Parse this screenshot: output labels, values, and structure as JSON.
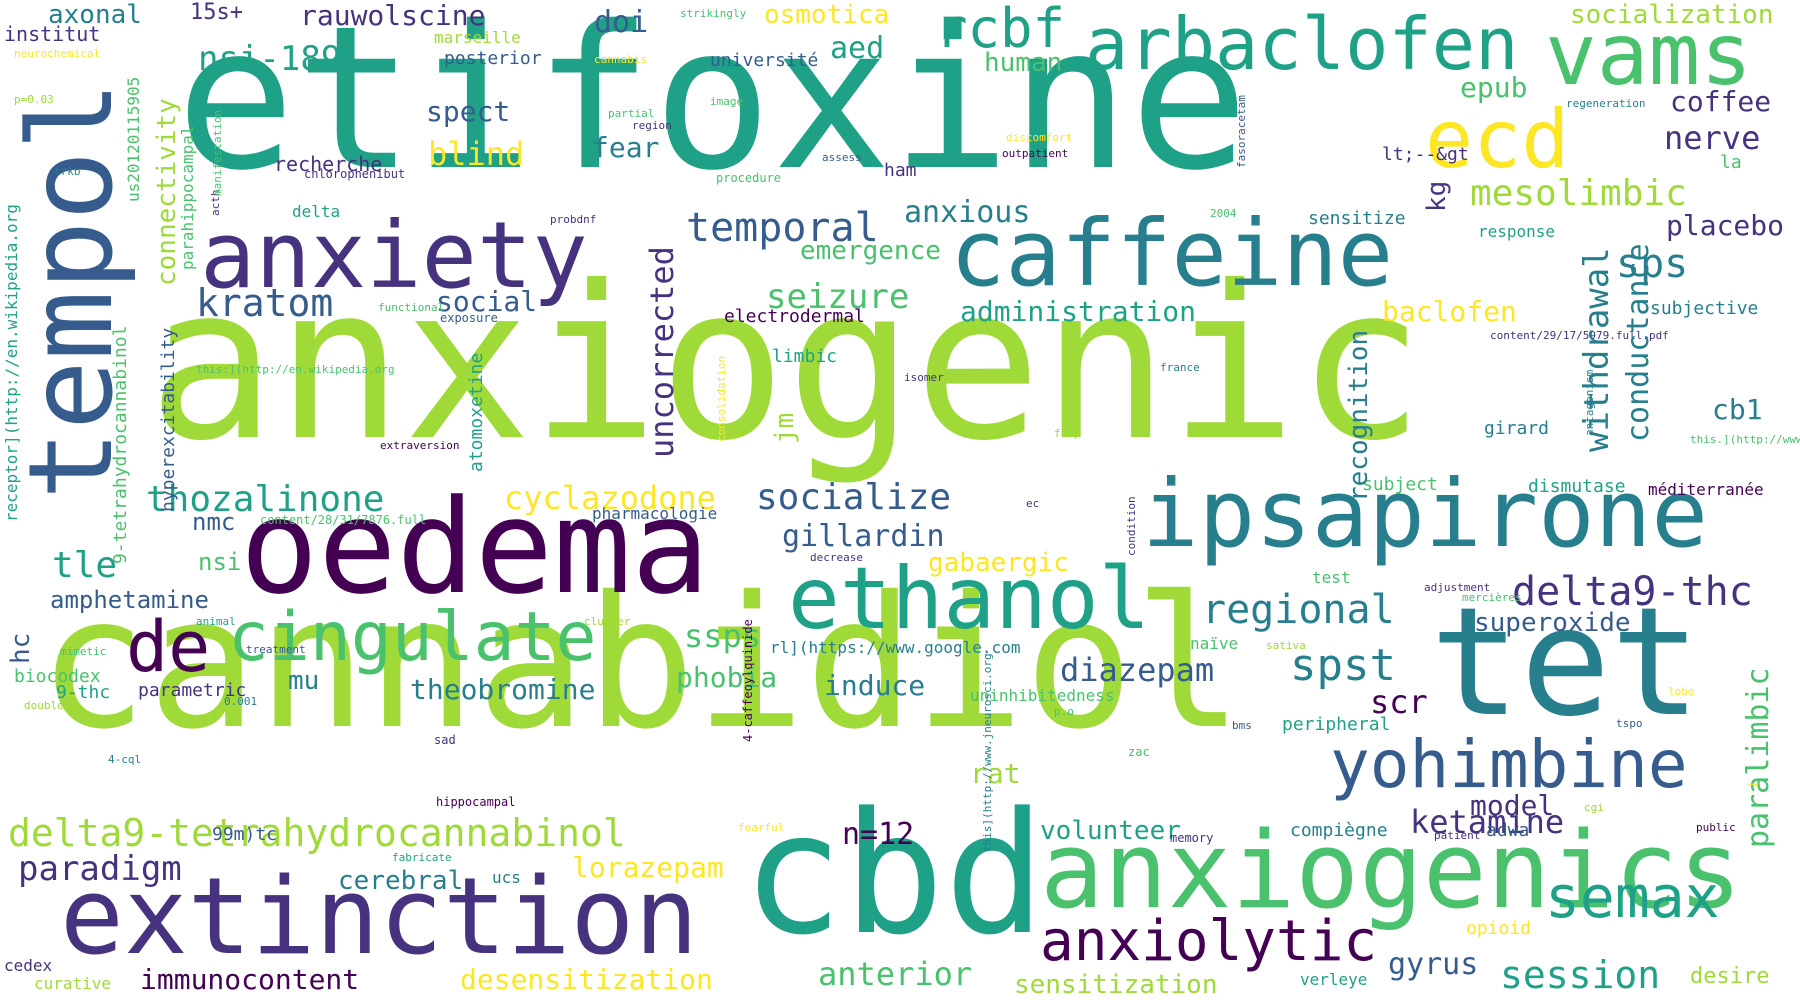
{
  "palette": [
    "#440154",
    "#46327e",
    "#365c8d",
    "#277f8e",
    "#1fa187",
    "#4ac16d",
    "#a0da39",
    "#fde725"
  ],
  "words": [
    {
      "text": "anxiogenic",
      "color": "#a0da39"
    },
    {
      "text": "etifoxine",
      "color": "#1fa187"
    },
    {
      "text": "cannabidiol",
      "color": "#a0da39"
    },
    {
      "text": "cbd",
      "color": "#1fa187"
    },
    {
      "text": "tempol",
      "color": "#365c8d"
    },
    {
      "text": "oedema",
      "color": "#440154"
    },
    {
      "text": "tet",
      "color": "#277f8e"
    },
    {
      "text": "anxiogenics",
      "color": "#4ac16d"
    },
    {
      "text": "extinction",
      "color": "#46327e"
    },
    {
      "text": "ipsapirone",
      "color": "#277f8e"
    },
    {
      "text": "caffeine",
      "color": "#277f8e"
    },
    {
      "text": "anxiety",
      "color": "#46327e"
    },
    {
      "text": "arbaclofen",
      "color": "#1fa187"
    },
    {
      "text": "vams",
      "color": "#4ac16d"
    },
    {
      "text": "ethanol",
      "color": "#1fa187"
    },
    {
      "text": "ecd",
      "color": "#fde725"
    },
    {
      "text": "yohimbine",
      "color": "#365c8d"
    },
    {
      "text": "cingulate",
      "color": "#4ac16d"
    },
    {
      "text": "semax",
      "color": "#1fa187"
    },
    {
      "text": "anxiolytic",
      "color": "#440154"
    },
    {
      "text": "de",
      "color": "#440154"
    },
    {
      "text": "rcbf",
      "color": "#1fa187"
    },
    {
      "text": "delta9-tetrahydrocannabinol",
      "color": "#a0da39"
    },
    {
      "text": "delta9-thc",
      "color": "#46327e"
    },
    {
      "text": "regional",
      "color": "#277f8e"
    },
    {
      "text": "spst",
      "color": "#277f8e"
    },
    {
      "text": "temporal",
      "color": "#365c8d"
    },
    {
      "text": "kratom",
      "color": "#365c8d"
    },
    {
      "text": "socialize",
      "color": "#365c8d"
    },
    {
      "text": "thozalinone",
      "color": "#1fa187"
    },
    {
      "text": "session",
      "color": "#1fa187"
    },
    {
      "text": "paradigm",
      "color": "#46327e"
    },
    {
      "text": "mesolimbic",
      "color": "#a0da39"
    },
    {
      "text": "nsi-189",
      "color": "#1fa187"
    },
    {
      "text": "rauwolscine",
      "color": "#46327e"
    },
    {
      "text": "sps",
      "color": "#277f8e"
    },
    {
      "text": "immunocontent",
      "color": "#440154"
    },
    {
      "text": "cyclazodone",
      "color": "#fde725"
    },
    {
      "text": "seizure",
      "color": "#4ac16d"
    },
    {
      "text": "gillardin",
      "color": "#365c8d"
    },
    {
      "text": "ketamine",
      "color": "#46327e"
    },
    {
      "text": "diazepam",
      "color": "#365c8d"
    },
    {
      "text": "uncorrected",
      "color": "#46327e"
    },
    {
      "text": "withdrawal",
      "color": "#277f8e"
    },
    {
      "text": "conductance",
      "color": "#277f8e"
    },
    {
      "text": "connectivity",
      "color": "#a0da39"
    },
    {
      "text": "paralimbic",
      "color": "#4ac16d"
    },
    {
      "text": "theobromine",
      "color": "#277f8e"
    },
    {
      "text": "desensitization",
      "color": "#fde725"
    },
    {
      "text": "anterior",
      "color": "#4ac16d"
    },
    {
      "text": "sensitization",
      "color": "#a0da39"
    },
    {
      "text": "amphetamine",
      "color": "#365c8d"
    },
    {
      "text": "administration",
      "color": "#1fa187"
    },
    {
      "text": "recognition",
      "color": "#277f8e"
    },
    {
      "text": "epub",
      "color": "#4ac16d"
    },
    {
      "text": "coffee",
      "color": "#46327e"
    },
    {
      "text": "nerve",
      "color": "#46327e"
    },
    {
      "text": "placebo",
      "color": "#46327e"
    },
    {
      "text": "baclofen",
      "color": "#fde725"
    },
    {
      "text": "osmotica",
      "color": "#fde725"
    },
    {
      "text": "socialization",
      "color": "#a0da39"
    },
    {
      "text": "human",
      "color": "#4ac16d"
    },
    {
      "text": "spect",
      "color": "#365c8d"
    },
    {
      "text": "blind",
      "color": "#fde725"
    },
    {
      "text": "fear",
      "color": "#277f8e"
    },
    {
      "text": "axonal",
      "color": "#277f8e"
    },
    {
      "text": "15s+",
      "color": "#46327e"
    },
    {
      "text": "institut",
      "color": "#46327e"
    },
    {
      "text": "aed",
      "color": "#1fa187"
    },
    {
      "text": "doi",
      "color": "#365c8d"
    },
    {
      "text": "anxious",
      "color": "#277f8e"
    },
    {
      "text": "emergence",
      "color": "#4ac16d"
    },
    {
      "text": "social",
      "color": "#365c8d"
    },
    {
      "text": "tle",
      "color": "#1fa187"
    },
    {
      "text": "nmc",
      "color": "#365c8d"
    },
    {
      "text": "nsi",
      "color": "#4ac16d"
    },
    {
      "text": "hc",
      "color": "#365c8d"
    },
    {
      "text": "mu",
      "color": "#277f8e"
    },
    {
      "text": "ssps",
      "color": "#4ac16d"
    },
    {
      "text": "phobia",
      "color": "#4ac16d"
    },
    {
      "text": "induce",
      "color": "#277f8e"
    },
    {
      "text": "scr",
      "color": "#440154"
    },
    {
      "text": "superoxide",
      "color": "#365c8d"
    },
    {
      "text": "cb1",
      "color": "#277f8e"
    },
    {
      "text": "model",
      "color": "#46327e"
    },
    {
      "text": "n=12",
      "color": "#440154"
    },
    {
      "text": "volunteer",
      "color": "#1fa187"
    },
    {
      "text": "rat",
      "color": "#a0da39"
    },
    {
      "text": "lorazepam",
      "color": "#fde725"
    },
    {
      "text": "cerebral",
      "color": "#277f8e"
    },
    {
      "text": "gyrus",
      "color": "#365c8d"
    },
    {
      "text": "gabaergic",
      "color": "#fde725"
    },
    {
      "text": "jm",
      "color": "#a0da39"
    },
    {
      "text": "kg",
      "color": "#46327e"
    },
    {
      "text": "marseille",
      "color": "#a0da39"
    },
    {
      "text": "posterior",
      "color": "#365c8d"
    },
    {
      "text": "université",
      "color": "#365c8d"
    },
    {
      "text": "recherche",
      "color": "#46327e"
    },
    {
      "text": "ham",
      "color": "#46327e"
    },
    {
      "text": "delta",
      "color": "#1fa187"
    },
    {
      "text": "lt;--&gt",
      "color": "#46327e"
    },
    {
      "text": "sensitize",
      "color": "#277f8e"
    },
    {
      "text": "response",
      "color": "#1fa187"
    },
    {
      "text": "subjective",
      "color": "#277f8e"
    },
    {
      "text": "la",
      "color": "#4ac16d"
    },
    {
      "text": "electrodermal",
      "color": "#440154"
    },
    {
      "text": "limbic",
      "color": "#1fa187"
    },
    {
      "text": "girard",
      "color": "#277f8e"
    },
    {
      "text": "subject",
      "color": "#4ac16d"
    },
    {
      "text": "dismutase",
      "color": "#1fa187"
    },
    {
      "text": "méditerranée",
      "color": "#440154"
    },
    {
      "text": "pharmacologie",
      "color": "#365c8d"
    },
    {
      "text": "parametric",
      "color": "#46327e"
    },
    {
      "text": "biocodex",
      "color": "#4ac16d"
    },
    {
      "text": "9-thc",
      "color": "#1fa187"
    },
    {
      "text": "99m)tc",
      "color": "#365c8d"
    },
    {
      "text": "ucs",
      "color": "#277f8e"
    },
    {
      "text": "uninhibitedness",
      "color": "#4ac16d"
    },
    {
      "text": "peripheral",
      "color": "#1fa187"
    },
    {
      "text": "compiègne",
      "color": "#277f8e"
    },
    {
      "text": "adwa",
      "color": "#365c8d"
    },
    {
      "text": "verleye",
      "color": "#1fa187"
    },
    {
      "text": "desire",
      "color": "#a0da39"
    },
    {
      "text": "opioid",
      "color": "#fde725"
    },
    {
      "text": "curative",
      "color": "#a0da39"
    },
    {
      "text": "cedex",
      "color": "#46327e"
    },
    {
      "text": "naïve",
      "color": "#4ac16d"
    },
    {
      "text": "rl](https://www.google.com",
      "color": "#277f8e"
    },
    {
      "text": "hyperexcitability",
      "color": "#365c8d"
    },
    {
      "text": "atomoxetine",
      "color": "#1fa187"
    },
    {
      "text": "9-tetrahydrocannabinol",
      "color": "#4ac16d"
    },
    {
      "text": "parahippocampal",
      "color": "#4ac16d"
    },
    {
      "text": "us20120115905",
      "color": "#4ac16d"
    },
    {
      "text": "receptor](http://en.wikipedia.org",
      "color": "#1fa187"
    },
    {
      "text": "acth",
      "color": "#46327e"
    },
    {
      "text": "chlorophenibut",
      "color": "#46327e"
    },
    {
      "text": "manifestation",
      "color": "#4ac16d"
    },
    {
      "text": "amygdala",
      "color": "#4ac16d"
    },
    {
      "text": "extraversion_and_introversion",
      "color": "#277f8e"
    },
    {
      "text": "functional",
      "color": "#4ac16d"
    },
    {
      "text": "exposure",
      "color": "#365c8d"
    },
    {
      "text": "this:](http://en.wikipedia.org",
      "color": "#4ac16d"
    },
    {
      "text": "extraversion",
      "color": "#440154"
    },
    {
      "text": "content/28/31/7876.full",
      "color": "#4ac16d"
    },
    {
      "text": "decrease",
      "color": "#46327e"
    },
    {
      "text": "cluster",
      "color": "#a0da39"
    },
    {
      "text": "animal",
      "color": "#1fa187"
    },
    {
      "text": "mimetic",
      "color": "#4ac16d"
    },
    {
      "text": "double",
      "color": "#a0da39"
    },
    {
      "text": "0.001",
      "color": "#277f8e"
    },
    {
      "text": "4-cql",
      "color": "#277f8e"
    },
    {
      "text": "sad",
      "color": "#46327e"
    },
    {
      "text": "hippocampal",
      "color": "#440154"
    },
    {
      "text": "fabricate",
      "color": "#1fa187"
    },
    {
      "text": "fearful",
      "color": "#fde725"
    },
    {
      "text": "this](http://www.jneurosci.org",
      "color": "#277f8e"
    },
    {
      "text": "memory",
      "color": "#46327e"
    },
    {
      "text": "patient",
      "color": "#46327e"
    },
    {
      "text": "public",
      "color": "#440154"
    },
    {
      "text": "j",
      "color": "#fde725"
    },
    {
      "text": "cgi",
      "color": "#a0da39"
    },
    {
      "text": "tspo",
      "color": "#365c8d"
    },
    {
      "text": "bms",
      "color": "#365c8d"
    },
    {
      "text": "zac",
      "color": "#4ac16d"
    },
    {
      "text": "p.o",
      "color": "#4ac16d"
    },
    {
      "text": "4-caffeoylquinide",
      "color": "#440154"
    },
    {
      "text": "treatment",
      "color": "#365c8d"
    },
    {
      "text": "sativa",
      "color": "#a0da39"
    },
    {
      "text": "adjustment",
      "color": "#46327e"
    },
    {
      "text": "mercières",
      "color": "#4ac16d"
    },
    {
      "text": "lobe",
      "color": "#fde725"
    },
    {
      "text": "test",
      "color": "#4ac16d"
    },
    {
      "text": "condition",
      "color": "#46327e"
    },
    {
      "text": "ec",
      "color": "#46327e"
    },
    {
      "text": "flip",
      "color": "#a0da39"
    },
    {
      "text": "isomer",
      "color": "#46327e"
    },
    {
      "text": "france",
      "color": "#277f8e"
    },
    {
      "text": "content/29/17/5979.full.pdf",
      "color": "#46327e"
    },
    {
      "text": "this.](http://www.jneurosci.org",
      "color": "#4ac16d"
    },
    {
      "text": "antagonism",
      "color": "#277f8e"
    },
    {
      "text": "consolidation",
      "color": "#fde725"
    },
    {
      "text": "2004",
      "color": "#4ac16d"
    },
    {
      "text": "probdnf",
      "color": "#46327e"
    },
    {
      "text": "assess",
      "color": "#365c8d"
    },
    {
      "text": "procedure",
      "color": "#4ac16d"
    },
    {
      "text": "image",
      "color": "#4ac16d"
    },
    {
      "text": "partial",
      "color": "#4ac16d"
    },
    {
      "text": "region",
      "color": "#46327e"
    },
    {
      "text": "cannabis",
      "color": "#fde725"
    },
    {
      "text": "strikingly",
      "color": "#4ac16d"
    },
    {
      "text": "discomfort",
      "color": "#fde725"
    },
    {
      "text": "outpatient",
      "color": "#440154"
    },
    {
      "text": "fasoracetam",
      "color": "#365c8d"
    },
    {
      "text": "regeneration",
      "color": "#277f8e"
    },
    {
      "text": "p=0.03",
      "color": "#a0da39"
    },
    {
      "text": "neurochemical",
      "color": "#fde725"
    },
    {
      "text": "trkb",
      "color": "#277f8e"
    },
    {
      "text": "",
      "color": "#fde725"
    }
  ]
}
